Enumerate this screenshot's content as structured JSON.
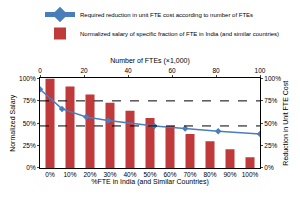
{
  "chart_data": {
    "type": "bar",
    "categories": [
      "0%",
      "10%",
      "20%",
      "30%",
      "40%",
      "50%",
      "60%",
      "70%",
      "80%",
      "90%",
      "100%"
    ],
    "xlabel": "%FTE in India (and Similar Countries)",
    "x2label": "Number of FTEs (×1,000)",
    "ylabel": "Normalized Salary",
    "y2label": "Reduction in Unit FTE Cost",
    "x2lim": [
      0,
      100
    ],
    "x2ticks": [
      0,
      20,
      40,
      60,
      80,
      100
    ],
    "ylim": [
      0,
      100
    ],
    "yticks": [
      {
        "value": 0,
        "label": "0%"
      },
      {
        "value": 25,
        "label": "25%"
      },
      {
        "value": 50,
        "label": "50%"
      },
      {
        "value": 75,
        "label": "75%"
      },
      {
        "value": 100,
        "label": "100%"
      }
    ],
    "y2lim": [
      0,
      100
    ],
    "y2ticks": [
      {
        "value": 0,
        "label": "0%"
      },
      {
        "value": 25,
        "label": "25%"
      },
      {
        "value": 50,
        "label": "50%"
      },
      {
        "value": 75,
        "label": "75%"
      },
      {
        "value": 100,
        "label": "100%"
      }
    ],
    "reference_lines": [
      75,
      47
    ],
    "legend": "upper left",
    "grid": false,
    "series": [
      {
        "name": "Required reduction in unit FTE cost according to number of FTEs",
        "type": "line",
        "color": "#4a7ebb",
        "marker": "diamond",
        "axis": "y2",
        "x": [
          0,
          10,
          21,
          31,
          52,
          66,
          81,
          100
        ],
        "values": [
          88,
          66,
          57,
          53,
          47,
          44,
          41,
          38
        ]
      },
      {
        "name": "Normalized salary of specific fraction of FTE in India (and similar countries)",
        "type": "bar",
        "color": "#c0393b",
        "values": [
          100,
          91,
          82,
          73,
          64,
          56,
          47,
          38,
          30,
          21,
          12
        ]
      }
    ]
  }
}
